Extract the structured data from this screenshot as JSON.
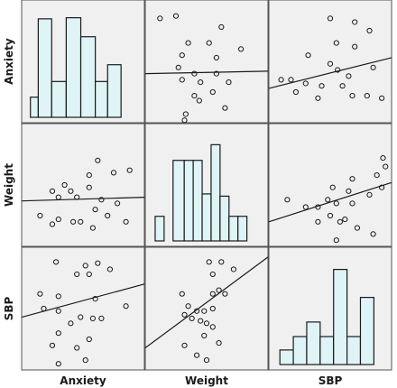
{
  "chart_data": {
    "type": "scatter",
    "variables": [
      "Anxiety",
      "Weight",
      "SBP"
    ],
    "colors": {
      "panel_bg": "#f0f0f0",
      "bar_fill": "#dff4f6",
      "bar_stroke": "#1a1a1a",
      "point_stroke": "#1a1a1a",
      "line": "#1a1a1a",
      "frame": "#555555"
    },
    "diagonal_histograms": [
      {
        "variable": "Anxiety",
        "xlim": [
          0,
          1
        ],
        "ylim": [
          0,
          10
        ],
        "bins": [
          {
            "lo": 0.03,
            "hi": 0.1,
            "count": 1.8
          },
          {
            "lo": 0.1,
            "hi": 0.22,
            "count": 8.8
          },
          {
            "lo": 0.22,
            "hi": 0.35,
            "count": 3.2
          },
          {
            "lo": 0.35,
            "hi": 0.48,
            "count": 8.9
          },
          {
            "lo": 0.48,
            "hi": 0.61,
            "count": 7.2
          },
          {
            "lo": 0.61,
            "hi": 0.72,
            "count": 3.2
          },
          {
            "lo": 0.72,
            "hi": 0.84,
            "count": 4.7
          }
        ]
      },
      {
        "variable": "Weight",
        "xlim": [
          0,
          1
        ],
        "ylim": [
          0,
          10
        ],
        "bins": [
          {
            "lo": 0.04,
            "hi": 0.12,
            "count": 2.2
          },
          {
            "lo": 0.2,
            "hi": 0.3,
            "count": 7.2
          },
          {
            "lo": 0.3,
            "hi": 0.38,
            "count": 7.2
          },
          {
            "lo": 0.38,
            "hi": 0.46,
            "count": 7.2
          },
          {
            "lo": 0.46,
            "hi": 0.54,
            "count": 4.2
          },
          {
            "lo": 0.54,
            "hi": 0.62,
            "count": 8.6
          },
          {
            "lo": 0.62,
            "hi": 0.7,
            "count": 4.0
          },
          {
            "lo": 0.7,
            "hi": 0.78,
            "count": 2.2
          },
          {
            "lo": 0.78,
            "hi": 0.86,
            "count": 2.2
          }
        ]
      },
      {
        "variable": "SBP",
        "xlim": [
          0,
          1
        ],
        "ylim": [
          0,
          10
        ],
        "bins": [
          {
            "lo": 0.05,
            "hi": 0.17,
            "count": 1.3
          },
          {
            "lo": 0.17,
            "hi": 0.29,
            "count": 2.5
          },
          {
            "lo": 0.29,
            "hi": 0.41,
            "count": 3.8
          },
          {
            "lo": 0.41,
            "hi": 0.53,
            "count": 2.5
          },
          {
            "lo": 0.53,
            "hi": 0.65,
            "count": 8.5
          },
          {
            "lo": 0.65,
            "hi": 0.77,
            "count": 2.5
          },
          {
            "lo": 0.77,
            "hi": 0.89,
            "count": 6.0
          }
        ]
      }
    ],
    "scatter_panels": [
      {
        "x_var": "Weight",
        "y_var": "Anxiety",
        "xlim": [
          0,
          1
        ],
        "ylim": [
          0,
          1
        ],
        "fit_line": [
          [
            0,
            0.4
          ],
          [
            1,
            0.42
          ]
        ],
        "points": [
          [
            0.12,
            0.85
          ],
          [
            0.25,
            0.87
          ],
          [
            0.62,
            0.78
          ],
          [
            0.35,
            0.65
          ],
          [
            0.52,
            0.65
          ],
          [
            0.78,
            0.6
          ],
          [
            0.3,
            0.55
          ],
          [
            0.58,
            0.53
          ],
          [
            0.27,
            0.45
          ],
          [
            0.4,
            0.4
          ],
          [
            0.58,
            0.4
          ],
          [
            0.3,
            0.35
          ],
          [
            0.45,
            0.33
          ],
          [
            0.68,
            0.33
          ],
          [
            0.55,
            0.25
          ],
          [
            0.4,
            0.22
          ],
          [
            0.44,
            0.18
          ],
          [
            0.65,
            0.12
          ],
          [
            0.33,
            0.07
          ],
          [
            0.32,
            0.02
          ]
        ]
      },
      {
        "x_var": "SBP",
        "y_var": "Anxiety",
        "xlim": [
          0,
          1
        ],
        "ylim": [
          0,
          1
        ],
        "fit_line": [
          [
            0,
            0.28
          ],
          [
            1,
            0.53
          ]
        ],
        "points": [
          [
            0.5,
            0.85
          ],
          [
            0.7,
            0.82
          ],
          [
            0.82,
            0.75
          ],
          [
            0.55,
            0.65
          ],
          [
            0.7,
            0.62
          ],
          [
            0.32,
            0.55
          ],
          [
            0.5,
            0.48
          ],
          [
            0.56,
            0.43
          ],
          [
            0.85,
            0.45
          ],
          [
            0.65,
            0.38
          ],
          [
            0.1,
            0.35
          ],
          [
            0.18,
            0.35
          ],
          [
            0.3,
            0.32
          ],
          [
            0.43,
            0.3
          ],
          [
            0.6,
            0.3
          ],
          [
            0.22,
            0.25
          ],
          [
            0.4,
            0.2
          ],
          [
            0.68,
            0.22
          ],
          [
            0.8,
            0.22
          ],
          [
            0.92,
            0.2
          ]
        ]
      },
      {
        "x_var": "Anxiety",
        "y_var": "Weight",
        "xlim": [
          0,
          1
        ],
        "ylim": [
          0,
          1
        ],
        "fit_line": [
          [
            0,
            0.37
          ],
          [
            1,
            0.4
          ]
        ],
        "points": [
          [
            0.62,
            0.7
          ],
          [
            0.55,
            0.58
          ],
          [
            0.75,
            0.6
          ],
          [
            0.88,
            0.62
          ],
          [
            0.35,
            0.5
          ],
          [
            0.55,
            0.48
          ],
          [
            0.25,
            0.45
          ],
          [
            0.4,
            0.45
          ],
          [
            0.45,
            0.4
          ],
          [
            0.65,
            0.38
          ],
          [
            0.78,
            0.35
          ],
          [
            0.3,
            0.4
          ],
          [
            0.6,
            0.3
          ],
          [
            0.7,
            0.25
          ],
          [
            0.15,
            0.25
          ],
          [
            0.3,
            0.22
          ],
          [
            0.42,
            0.2
          ],
          [
            0.48,
            0.2
          ],
          [
            0.85,
            0.2
          ],
          [
            0.25,
            0.18
          ],
          [
            0.58,
            0.15
          ]
        ]
      },
      {
        "x_var": "SBP",
        "y_var": "Weight",
        "xlim": [
          0,
          1
        ],
        "ylim": [
          0,
          1
        ],
        "fit_line": [
          [
            0,
            0.2
          ],
          [
            1,
            0.52
          ]
        ],
        "points": [
          [
            0.93,
            0.72
          ],
          [
            0.95,
            0.65
          ],
          [
            0.68,
            0.55
          ],
          [
            0.88,
            0.58
          ],
          [
            0.52,
            0.48
          ],
          [
            0.65,
            0.45
          ],
          [
            0.15,
            0.38
          ],
          [
            0.3,
            0.32
          ],
          [
            0.4,
            0.32
          ],
          [
            0.48,
            0.38
          ],
          [
            0.55,
            0.35
          ],
          [
            0.68,
            0.35
          ],
          [
            0.82,
            0.42
          ],
          [
            0.92,
            0.48
          ],
          [
            0.5,
            0.25
          ],
          [
            0.58,
            0.2
          ],
          [
            0.62,
            0.22
          ],
          [
            0.72,
            0.15
          ],
          [
            0.85,
            0.1
          ],
          [
            0.4,
            0.2
          ],
          [
            0.55,
            0.05
          ]
        ]
      },
      {
        "x_var": "Anxiety",
        "y_var": "SBP",
        "xlim": [
          0,
          1
        ],
        "ylim": [
          0,
          1
        ],
        "fit_line": [
          [
            0,
            0.43
          ],
          [
            1,
            0.7
          ]
        ],
        "points": [
          [
            0.28,
            0.88
          ],
          [
            0.52,
            0.85
          ],
          [
            0.62,
            0.87
          ],
          [
            0.72,
            0.82
          ],
          [
            0.45,
            0.78
          ],
          [
            0.55,
            0.78
          ],
          [
            0.15,
            0.62
          ],
          [
            0.3,
            0.6
          ],
          [
            0.6,
            0.58
          ],
          [
            0.85,
            0.52
          ],
          [
            0.18,
            0.5
          ],
          [
            0.3,
            0.48
          ],
          [
            0.48,
            0.43
          ],
          [
            0.58,
            0.42
          ],
          [
            0.65,
            0.42
          ],
          [
            0.4,
            0.38
          ],
          [
            0.3,
            0.3
          ],
          [
            0.55,
            0.25
          ],
          [
            0.25,
            0.2
          ],
          [
            0.45,
            0.18
          ],
          [
            0.52,
            0.08
          ],
          [
            0.3,
            0.05
          ]
        ]
      },
      {
        "x_var": "Weight",
        "y_var": "SBP",
        "xlim": [
          0,
          1
        ],
        "ylim": [
          0,
          1
        ],
        "fit_line": [
          [
            0,
            0.18
          ],
          [
            1,
            0.92
          ]
        ],
        "points": [
          [
            0.52,
            0.88
          ],
          [
            0.62,
            0.88
          ],
          [
            0.72,
            0.82
          ],
          [
            0.55,
            0.78
          ],
          [
            0.3,
            0.62
          ],
          [
            0.55,
            0.62
          ],
          [
            0.6,
            0.65
          ],
          [
            0.65,
            0.62
          ],
          [
            0.35,
            0.52
          ],
          [
            0.42,
            0.48
          ],
          [
            0.48,
            0.48
          ],
          [
            0.55,
            0.5
          ],
          [
            0.32,
            0.45
          ],
          [
            0.38,
            0.42
          ],
          [
            0.45,
            0.4
          ],
          [
            0.5,
            0.38
          ],
          [
            0.55,
            0.35
          ],
          [
            0.48,
            0.28
          ],
          [
            0.6,
            0.22
          ],
          [
            0.32,
            0.2
          ],
          [
            0.42,
            0.12
          ],
          [
            0.5,
            0.08
          ]
        ]
      }
    ]
  }
}
